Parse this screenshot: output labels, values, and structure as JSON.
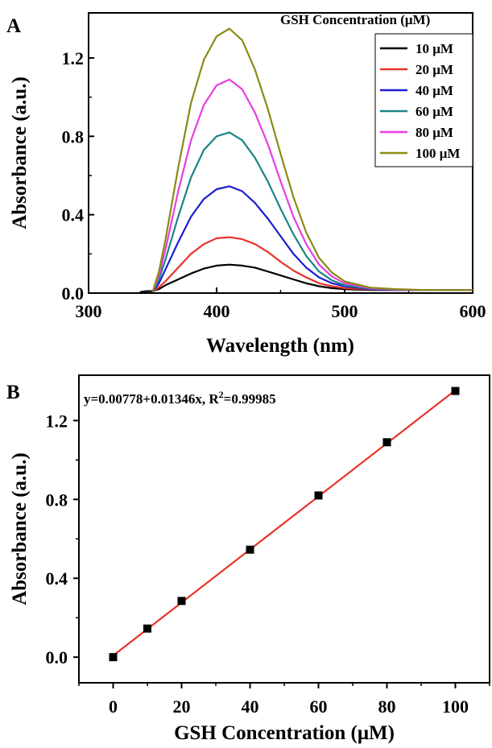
{
  "chart_data": [
    {
      "panel": "A",
      "type": "line",
      "xlabel": "Wavelength (nm)",
      "ylabel": "Absorbance (a.u.)",
      "xlim": [
        300,
        600
      ],
      "ylim": [
        0,
        1.43
      ],
      "x_ticks": [
        300,
        400,
        500,
        600
      ],
      "y_ticks": [
        0.0,
        0.4,
        0.8,
        1.2
      ],
      "x_tick_labels": [
        "300",
        "400",
        "500",
        "600"
      ],
      "y_tick_labels": [
        "0.0",
        "0.4",
        "0.8",
        "1.2"
      ],
      "grid": false,
      "legend": {
        "title": "GSH Concentration (μM)",
        "placement": "top-right"
      },
      "series": [
        {
          "name": "10 μM",
          "color": "#000000",
          "x": [
            340,
            345,
            350,
            355,
            360,
            370,
            380,
            390,
            400,
            410,
            420,
            430,
            440,
            450,
            460,
            470,
            480,
            490,
            500,
            520,
            540,
            560,
            580,
            600
          ],
          "y": [
            0.005,
            0.01,
            0.01,
            0.02,
            0.04,
            0.07,
            0.1,
            0.125,
            0.14,
            0.145,
            0.14,
            0.13,
            0.11,
            0.09,
            0.07,
            0.05,
            0.035,
            0.025,
            0.02,
            0.015,
            0.015,
            0.015,
            0.015,
            0.015
          ]
        },
        {
          "name": "20 μM",
          "color": "#e8322a",
          "x": [
            350,
            355,
            360,
            370,
            380,
            390,
            400,
            410,
            420,
            430,
            440,
            450,
            460,
            470,
            480,
            490,
            500,
            520,
            540,
            560,
            580,
            600
          ],
          "y": [
            0.005,
            0.03,
            0.06,
            0.13,
            0.2,
            0.25,
            0.28,
            0.285,
            0.275,
            0.25,
            0.21,
            0.16,
            0.115,
            0.08,
            0.05,
            0.035,
            0.025,
            0.018,
            0.015,
            0.015,
            0.015,
            0.015
          ]
        },
        {
          "name": "40 μM",
          "color": "#1c1cd4",
          "x": [
            350,
            355,
            360,
            370,
            380,
            390,
            400,
            410,
            420,
            430,
            440,
            450,
            460,
            470,
            480,
            490,
            500,
            520,
            540,
            560,
            580,
            600
          ],
          "y": [
            0.005,
            0.05,
            0.12,
            0.26,
            0.39,
            0.48,
            0.53,
            0.545,
            0.52,
            0.46,
            0.38,
            0.29,
            0.2,
            0.13,
            0.08,
            0.05,
            0.035,
            0.02,
            0.015,
            0.015,
            0.015,
            0.015
          ]
        },
        {
          "name": "60 μM",
          "color": "#1a8585",
          "x": [
            350,
            355,
            360,
            370,
            380,
            390,
            400,
            410,
            420,
            430,
            440,
            450,
            460,
            470,
            480,
            490,
            500,
            520,
            540,
            560,
            580,
            600
          ],
          "y": [
            0.005,
            0.07,
            0.17,
            0.39,
            0.59,
            0.73,
            0.8,
            0.82,
            0.78,
            0.69,
            0.57,
            0.43,
            0.3,
            0.19,
            0.11,
            0.065,
            0.04,
            0.022,
            0.017,
            0.015,
            0.015,
            0.015
          ]
        },
        {
          "name": "80 μM",
          "color": "#e83de3",
          "x": [
            350,
            355,
            360,
            370,
            380,
            390,
            400,
            410,
            420,
            430,
            440,
            450,
            460,
            470,
            480,
            490,
            500,
            520,
            540,
            560,
            580,
            600
          ],
          "y": [
            0.005,
            0.09,
            0.22,
            0.52,
            0.78,
            0.96,
            1.06,
            1.09,
            1.04,
            0.92,
            0.76,
            0.57,
            0.39,
            0.25,
            0.145,
            0.085,
            0.05,
            0.025,
            0.018,
            0.015,
            0.015,
            0.015
          ]
        },
        {
          "name": "100 μM",
          "color": "#8a8a12",
          "x": [
            350,
            355,
            360,
            370,
            380,
            390,
            400,
            410,
            420,
            430,
            440,
            450,
            460,
            470,
            480,
            490,
            500,
            520,
            540,
            560,
            580,
            600
          ],
          "y": [
            0.005,
            0.11,
            0.27,
            0.64,
            0.97,
            1.19,
            1.31,
            1.35,
            1.29,
            1.14,
            0.94,
            0.71,
            0.49,
            0.31,
            0.18,
            0.105,
            0.06,
            0.028,
            0.02,
            0.016,
            0.015,
            0.015
          ]
        }
      ]
    },
    {
      "panel": "B",
      "type": "scatter",
      "xlabel": "GSH Concentration (μM)",
      "ylabel": "Absorbance (a.u.)",
      "xlim": [
        -10,
        110
      ],
      "ylim": [
        -0.13,
        1.43
      ],
      "x_ticks": [
        0,
        20,
        40,
        60,
        80,
        100
      ],
      "y_ticks": [
        0.0,
        0.4,
        0.8,
        1.2
      ],
      "x_tick_labels": [
        "0",
        "20",
        "40",
        "60",
        "80",
        "100"
      ],
      "y_tick_labels": [
        "0.0",
        "0.4",
        "0.8",
        "1.2"
      ],
      "grid": false,
      "points": {
        "x": [
          0,
          10,
          20,
          40,
          60,
          80,
          100
        ],
        "y": [
          0.0,
          0.145,
          0.285,
          0.545,
          0.82,
          1.09,
          1.35
        ],
        "color": "#000000",
        "marker": "square"
      },
      "fit": {
        "intercept": 0.00778,
        "slope": 0.01346,
        "color": "#e8322a",
        "equation_prefix": "y=0.00778+0.01346x, R",
        "equation_sup": "2",
        "equation_suffix": "=0.99985"
      }
    }
  ]
}
